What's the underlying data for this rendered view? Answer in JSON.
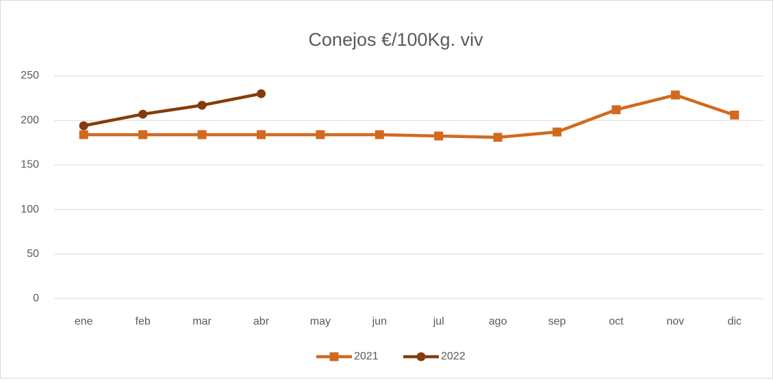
{
  "chart_data": {
    "type": "line",
    "title": "Conejos €/100Kg. viv",
    "categories": [
      "ene",
      "feb",
      "mar",
      "abr",
      "may",
      "jun",
      "jul",
      "ago",
      "sep",
      "oct",
      "nov",
      "dic"
    ],
    "series": [
      {
        "name": "2021",
        "color": "#d2691e",
        "marker": "square",
        "values": [
          184,
          184,
          184,
          184,
          184,
          184,
          182.5,
          181,
          187,
          212,
          228.5,
          206
        ]
      },
      {
        "name": "2022",
        "color": "#843c0c",
        "marker": "circle",
        "values": [
          194,
          207,
          217,
          230,
          null,
          null,
          null,
          null,
          null,
          null,
          null,
          null
        ]
      }
    ],
    "ylim": [
      0,
      250
    ],
    "yticks": [
      0,
      50,
      100,
      150,
      200,
      250
    ],
    "grid": true,
    "legend": "bottom"
  }
}
